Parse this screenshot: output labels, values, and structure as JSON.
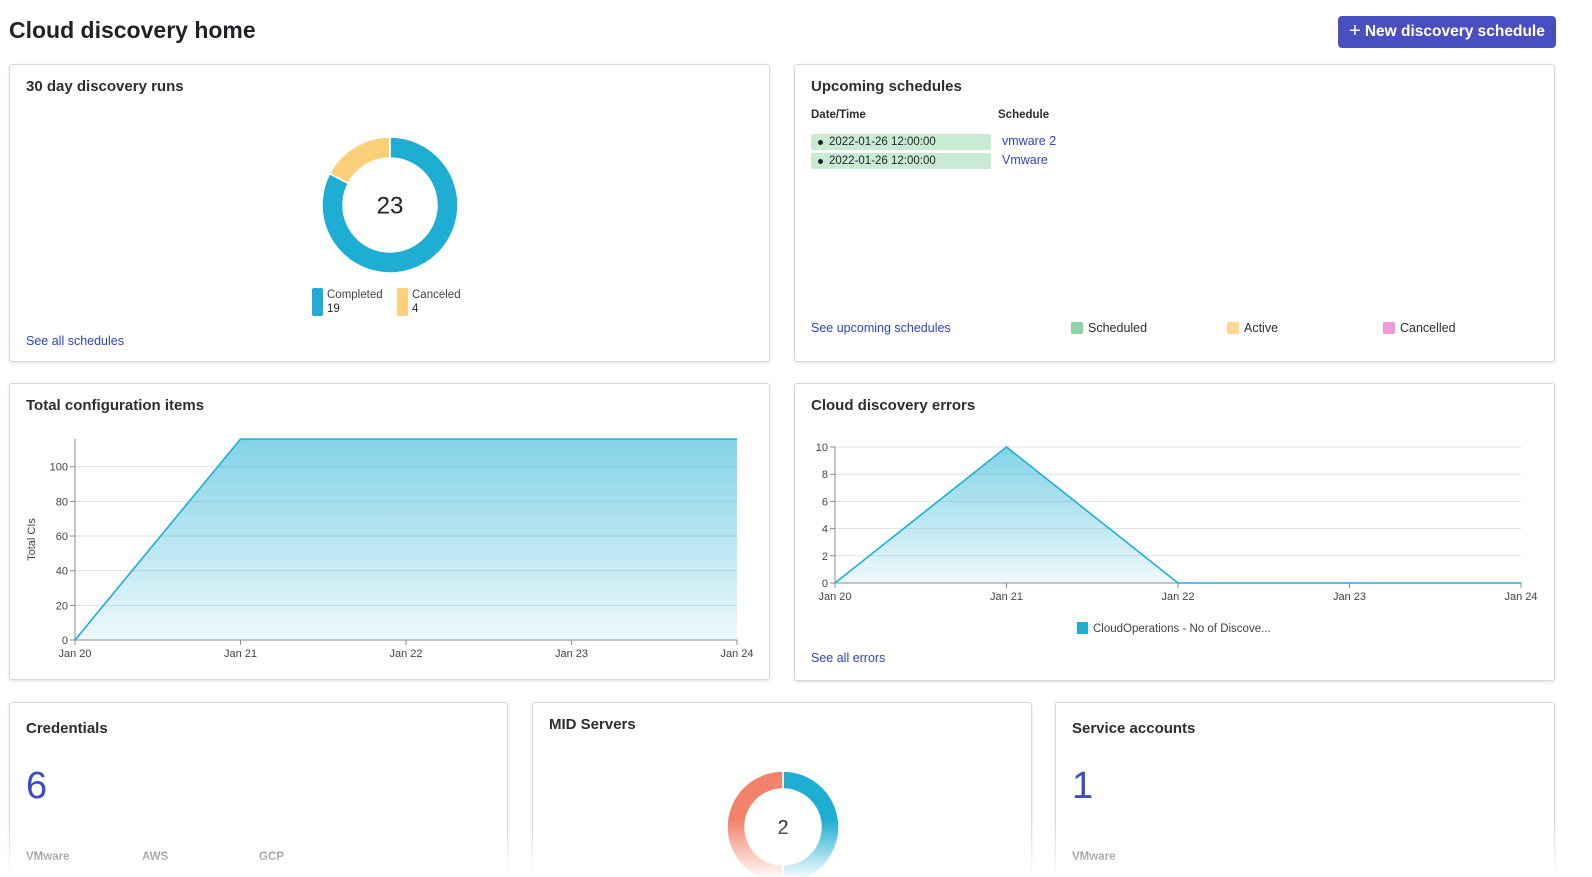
{
  "header": {
    "title": "Cloud discovery home",
    "new_button_label": "New discovery schedule",
    "new_button_icon": "plus-icon"
  },
  "runs_card": {
    "title": "30 day discovery runs",
    "center_total": "23",
    "legend": [
      {
        "label": "Completed",
        "count": "19",
        "color": "#1eaed3"
      },
      {
        "label": "Canceled",
        "count": "4",
        "color": "#fcd078"
      }
    ],
    "link": "See all schedules"
  },
  "upcoming_card": {
    "title": "Upcoming schedules",
    "columns": [
      "Date/Time",
      "Schedule"
    ],
    "rows": [
      {
        "datetime": "2022-01-26 12:00:00",
        "schedule": "vmware 2"
      },
      {
        "datetime": "2022-01-26 12:00:00",
        "schedule": "Vmware"
      }
    ],
    "link": "See upcoming schedules",
    "legend": [
      {
        "label": "Scheduled",
        "color": "#8fd3a8"
      },
      {
        "label": "Active",
        "color": "#fcd894"
      },
      {
        "label": "Cancelled",
        "color": "#ee9bd3"
      }
    ]
  },
  "total_card": {
    "title": "Total configuration items"
  },
  "errors_card": {
    "title": "Cloud discovery errors",
    "link": "See all errors"
  },
  "credentials_card": {
    "title": "Credentials",
    "value": "6",
    "labels": [
      "VMware",
      "AWS",
      "GCP"
    ]
  },
  "mid_card": {
    "title": "MID Servers",
    "center_total": "2",
    "colors": [
      "#1eaed3",
      "#f2836b"
    ]
  },
  "service_card": {
    "title": "Service accounts",
    "value": "1",
    "labels": [
      "VMware"
    ]
  },
  "chart_data": [
    {
      "type": "pie",
      "title": "30 day discovery runs",
      "categories": [
        "Completed",
        "Canceled"
      ],
      "values": [
        19,
        4
      ],
      "colors": [
        "#1eaed3",
        "#fcd078"
      ],
      "donut": true,
      "center_label": "23"
    },
    {
      "type": "area",
      "title": "Total configuration items",
      "ylabel": "Total CIs",
      "x": [
        "Jan 20",
        "Jan 21",
        "Jan 22",
        "Jan 23",
        "Jan 24"
      ],
      "series": [
        {
          "values": [
            0,
            116,
            116,
            116,
            116
          ]
        }
      ],
      "yticks": [
        0,
        20,
        40,
        60,
        80,
        100
      ],
      "ylim": [
        0,
        116
      ],
      "grid": true,
      "color": "#1eaed3"
    },
    {
      "type": "area",
      "title": "Cloud discovery errors",
      "x": [
        "Jan 20",
        "Jan 21",
        "Jan 22",
        "Jan 23",
        "Jan 24"
      ],
      "series": [
        {
          "name": "CloudOperations - No of Discove...",
          "values": [
            0,
            10,
            0,
            0,
            0
          ]
        }
      ],
      "yticks": [
        0,
        2,
        4,
        6,
        8,
        10
      ],
      "ylim": [
        0,
        10
      ],
      "grid": true,
      "legend": "bottom",
      "color": "#1eaed3"
    },
    {
      "type": "pie",
      "title": "MID Servers",
      "values": [
        1,
        1
      ],
      "colors": [
        "#1eaed3",
        "#f2836b"
      ],
      "donut": true,
      "center_label": "2"
    }
  ]
}
